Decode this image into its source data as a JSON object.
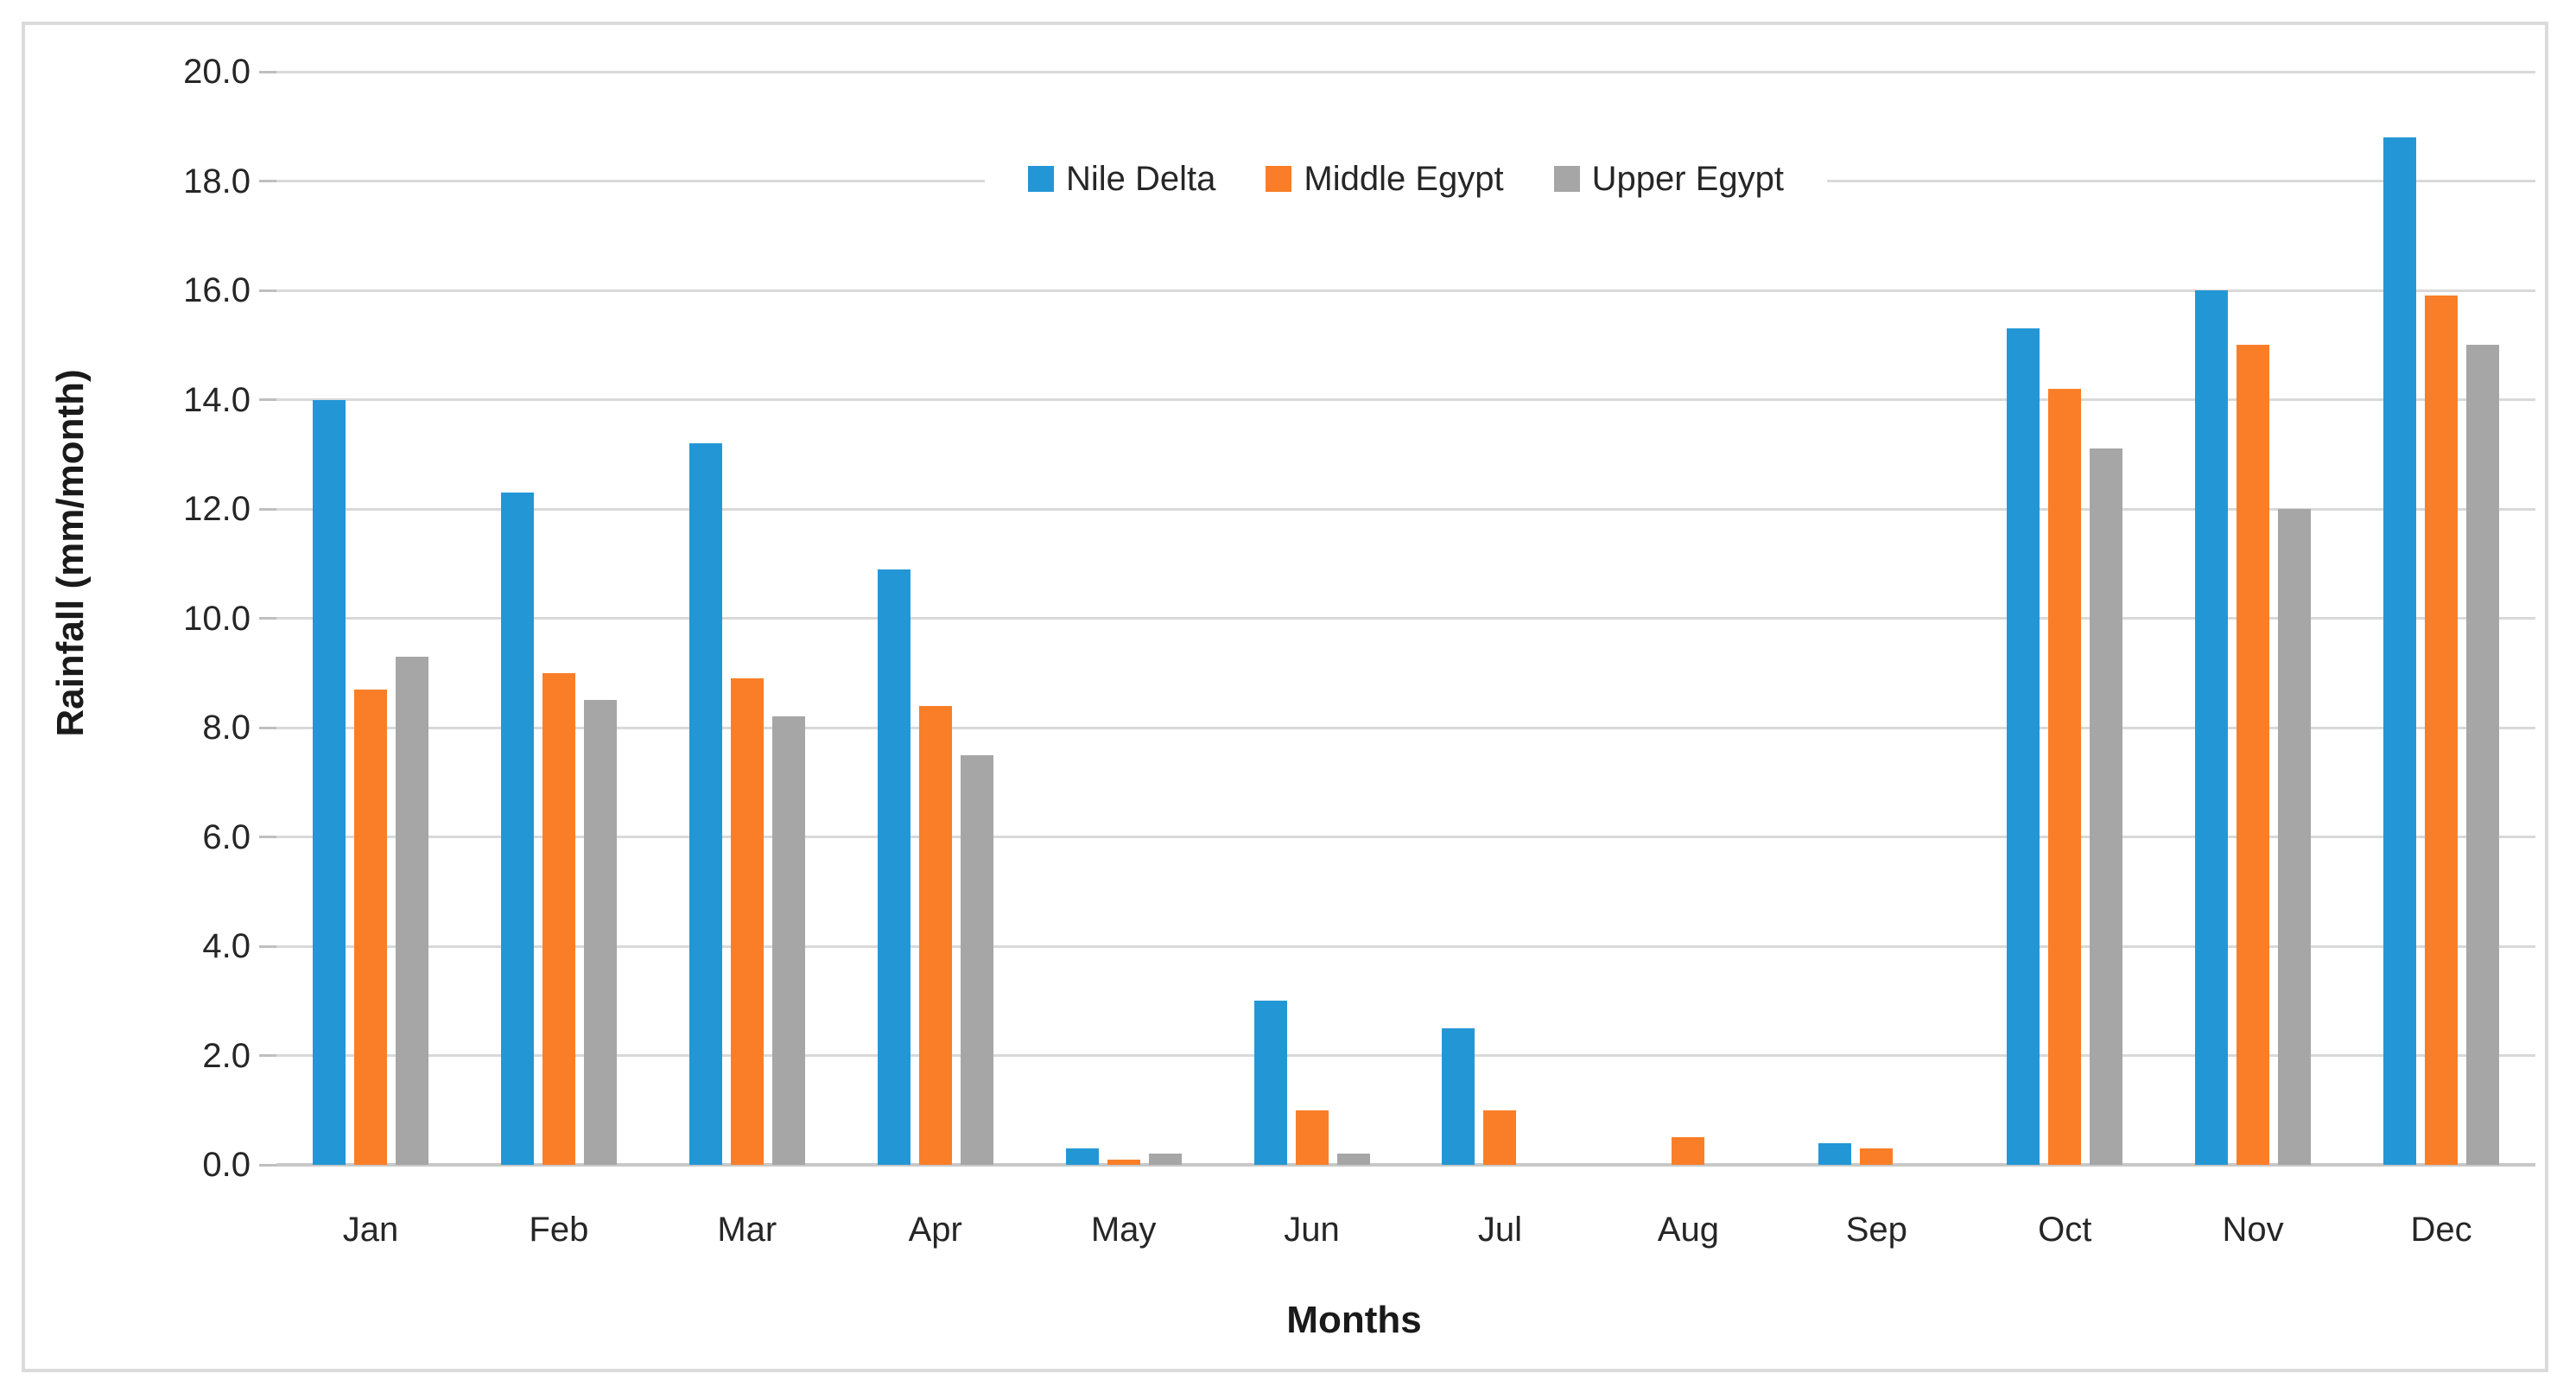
{
  "figure": {
    "y_axis_title": "Rainfall (mm/month)",
    "x_axis_title": "Months"
  },
  "chart_data": {
    "type": "bar",
    "title": "",
    "xlabel": "Months",
    "ylabel": "Rainfall (mm/month)",
    "ylim": [
      0,
      20
    ],
    "ytick_step": 2,
    "y_tick_labels": [
      "0.0",
      "2.0",
      "4.0",
      "6.0",
      "8.0",
      "10.0",
      "12.0",
      "14.0",
      "16.0",
      "18.0",
      "20.0"
    ],
    "grid": "horizontal",
    "legend_position": "top-center",
    "categories": [
      "Jan",
      "Feb",
      "Mar",
      "Apr",
      "May",
      "Jun",
      "Jul",
      "Aug",
      "Sep",
      "Oct",
      "Nov",
      "Dec"
    ],
    "series": [
      {
        "name": "Nile Delta",
        "color": "#2397d6",
        "values": [
          14.0,
          12.3,
          13.2,
          10.9,
          0.3,
          3.0,
          2.5,
          0.0,
          0.4,
          15.3,
          16.0,
          18.8
        ]
      },
      {
        "name": "Middle Egypt",
        "color": "#f97e27",
        "values": [
          8.7,
          9.0,
          8.9,
          8.4,
          0.1,
          1.0,
          1.0,
          0.5,
          0.3,
          14.2,
          15.0,
          15.9
        ]
      },
      {
        "name": "Upper Egypt",
        "color": "#a6a6a6",
        "values": [
          9.3,
          8.5,
          8.2,
          7.5,
          0.2,
          0.2,
          0.0,
          0.0,
          0.0,
          13.1,
          12.0,
          15.0
        ]
      }
    ],
    "style_colors": {
      "gridline": "#d9d9d9",
      "axis_line": "#c8c8c8",
      "tick": "#bfbfbf",
      "frame_border": "#dbdbdb",
      "text": "#262626"
    }
  }
}
